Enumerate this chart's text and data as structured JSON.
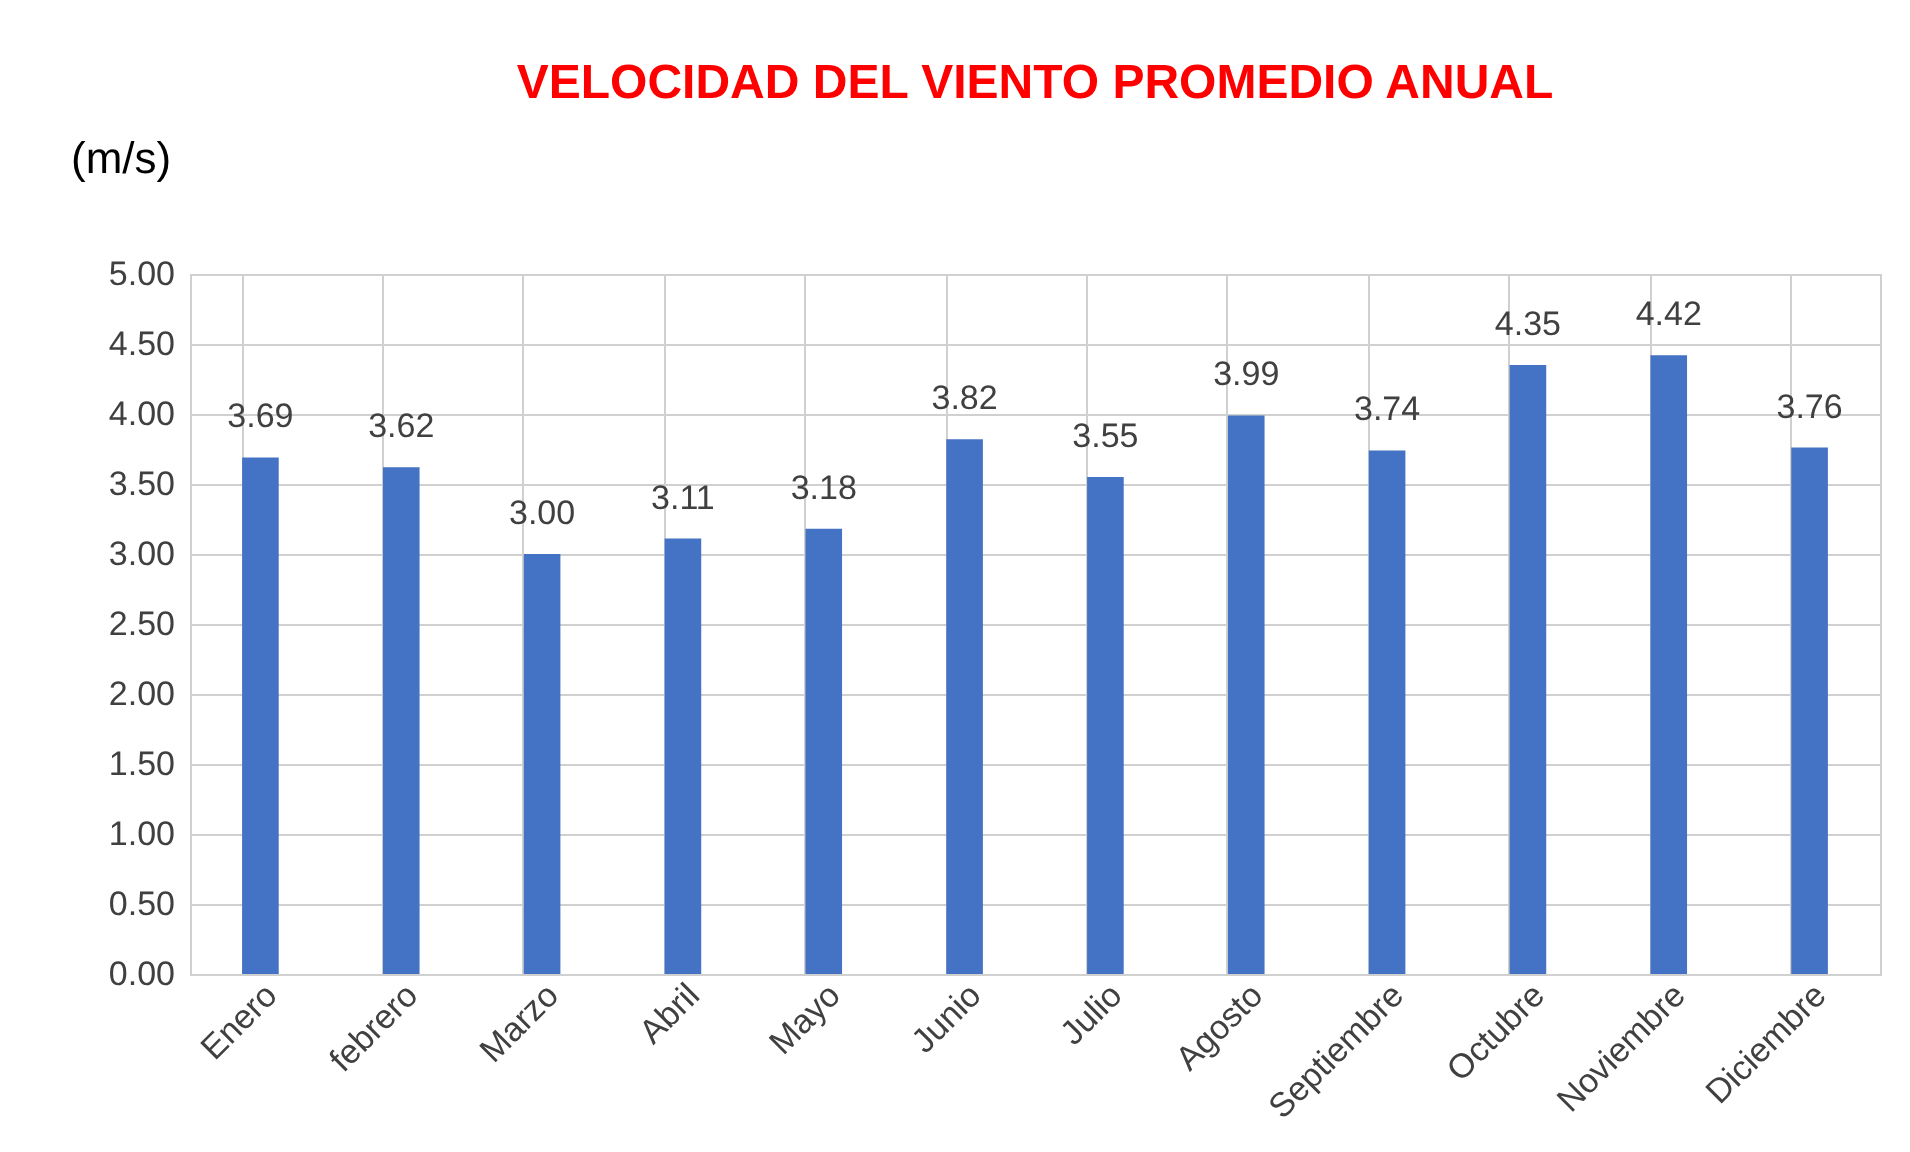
{
  "chart_data": {
    "type": "bar",
    "title": "VELOCIDAD DEL VIENTO PROMEDIO ANUAL",
    "ylabel": "(m/s)",
    "categories": [
      "Enero",
      "febrero",
      "Marzo",
      "Abril",
      "Mayo",
      "Junio",
      "Julio",
      "Agosto",
      "Septiembre",
      "Octubre",
      "Noviembre",
      "Diciembre"
    ],
    "values": [
      3.69,
      3.62,
      3.0,
      3.11,
      3.18,
      3.82,
      3.55,
      3.99,
      3.74,
      4.35,
      4.42,
      3.76
    ],
    "value_labels": [
      "3.69",
      "3.62",
      "3.00",
      "3.11",
      "3.18",
      "3.82",
      "3.55",
      "3.99",
      "3.74",
      "4.35",
      "4.42",
      "3.76"
    ],
    "color": "#4472c4",
    "ylim": [
      0,
      5
    ],
    "yticks": [
      {
        "value": 0,
        "label": "0.00"
      },
      {
        "value": 0.5,
        "label": "0.50"
      },
      {
        "value": 1,
        "label": "1.00"
      },
      {
        "value": 1.5,
        "label": "1.50"
      },
      {
        "value": 2,
        "label": "2.00"
      },
      {
        "value": 2.5,
        "label": "2.50"
      },
      {
        "value": 3,
        "label": "3.00"
      },
      {
        "value": 3.5,
        "label": "3.50"
      },
      {
        "value": 4,
        "label": "4.00"
      },
      {
        "value": 4.5,
        "label": "4.50"
      },
      {
        "value": 5,
        "label": "5.00"
      }
    ],
    "grid": true
  }
}
